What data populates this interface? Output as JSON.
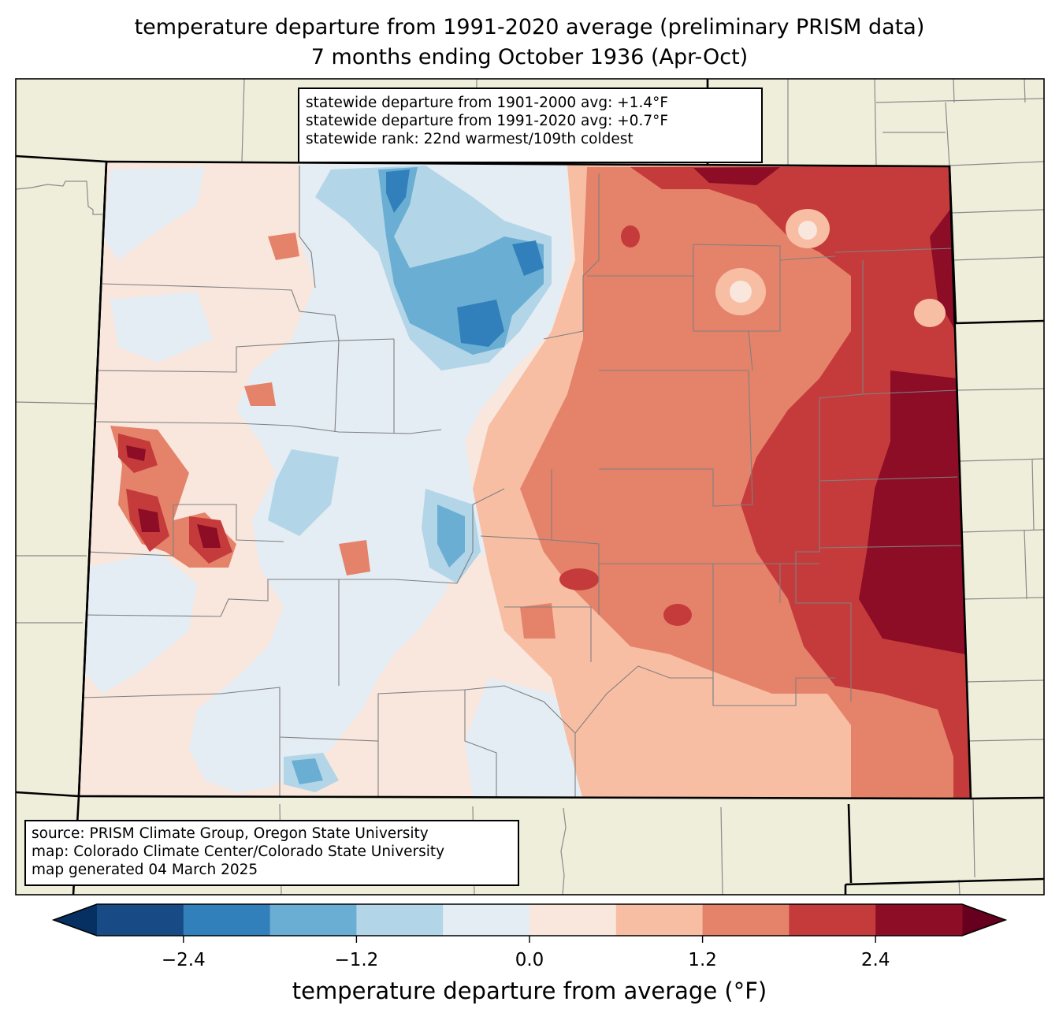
{
  "title": {
    "line1": "temperature departure from 1991-2020 average (preliminary PRISM data)",
    "line2": "7 months ending October 1936 (Apr-Oct)"
  },
  "stats_box": {
    "line1": "statewide departure from 1901-2000 avg: +1.4°F",
    "line2": "statewide departure from 1991-2020 avg: +0.7°F",
    "line3": "statewide rank: 22nd warmest/109th coldest"
  },
  "credits_box": {
    "line1": "source: PRISM Climate Group, Oregon State University",
    "line2": "map: Colorado Climate Center/Colorado State University",
    "line3": "map generated 04 March 2025"
  },
  "colorbar": {
    "label": "temperature departure from average (°F)",
    "ticks": [
      "−2.4",
      "−1.2",
      "0.0",
      "1.2",
      "2.4"
    ],
    "tick_values": [
      -2.4,
      -1.2,
      0.0,
      1.2,
      2.4
    ],
    "bounds": [
      -3.0,
      -2.4,
      -1.8,
      -1.2,
      -0.6,
      0.0,
      0.6,
      1.2,
      1.8,
      2.4,
      3.0
    ],
    "colors": [
      "#184b85",
      "#3280bb",
      "#6aaed3",
      "#b2d5e8",
      "#e4ecf4",
      "#f9e7de",
      "#f8bea4",
      "#e5826a",
      "#c53b3b",
      "#8c0d25"
    ],
    "under_color": "#053061",
    "over_color": "#67001f"
  },
  "colors": {
    "land": "#efeedb",
    "state_border": "#000000",
    "county_border": "#808080"
  }
}
